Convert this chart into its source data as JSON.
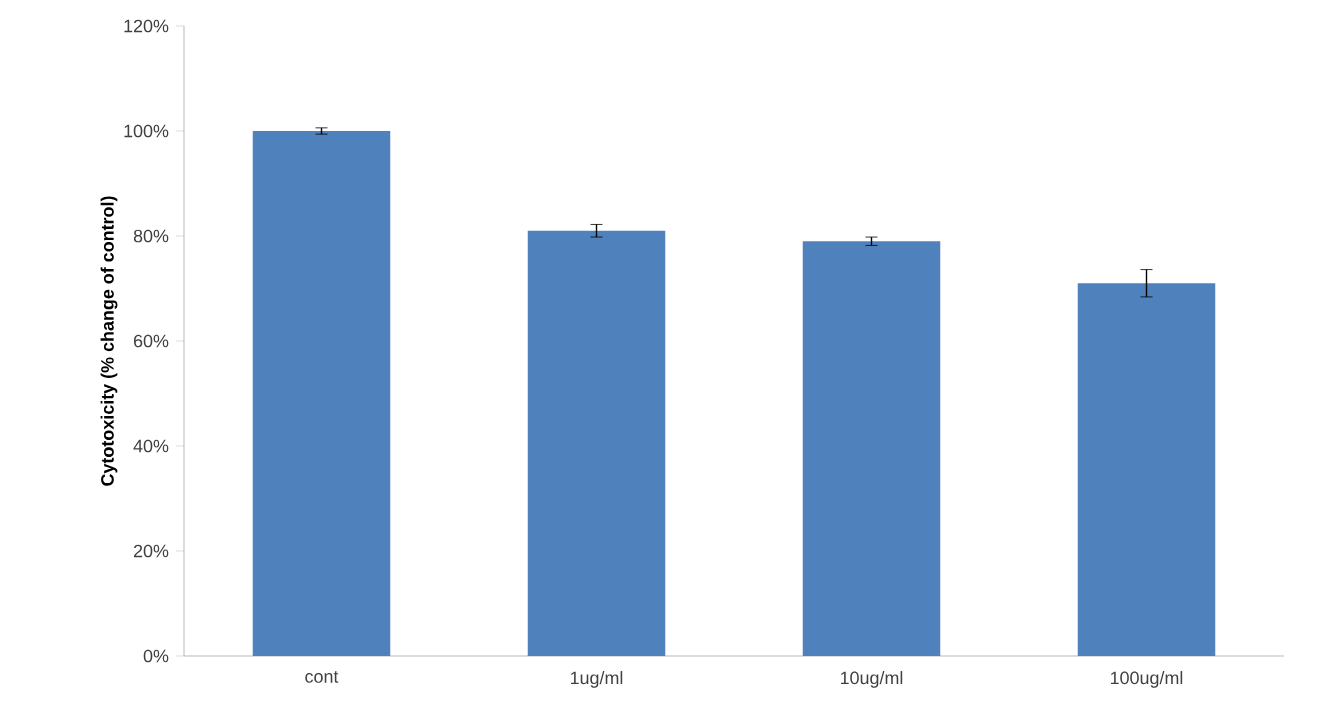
{
  "chart_data": {
    "type": "bar",
    "ylabel": "Cytotoxicity (% change of control)",
    "categories": [
      "cont",
      "1ug/ml",
      "10ug/ml",
      "100ug/ml"
    ],
    "values": [
      100,
      81,
      79,
      71
    ],
    "errors": [
      0.6,
      1.2,
      0.8,
      2.6
    ],
    "color": "#4f81bd",
    "ylim": [
      0,
      120
    ],
    "yticks": [
      {
        "value": 0,
        "label": "0%"
      },
      {
        "value": 20,
        "label": "20%"
      },
      {
        "value": 40,
        "label": "40%"
      },
      {
        "value": 60,
        "label": "60%"
      },
      {
        "value": 80,
        "label": "80%"
      },
      {
        "value": 100,
        "label": "100%"
      },
      {
        "value": 120,
        "label": "120%"
      }
    ],
    "grid": false
  }
}
